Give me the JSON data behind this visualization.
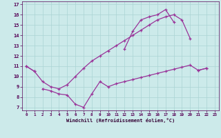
{
  "xlabel": "Windchill (Refroidissement éolien,°C)",
  "bg_color": "#cceaea",
  "line_color": "#993399",
  "grid_color": "#aad4d4",
  "xlim": [
    -0.5,
    23.5
  ],
  "ylim": [
    6.7,
    17.3
  ],
  "xticks": [
    0,
    1,
    2,
    3,
    4,
    5,
    6,
    7,
    8,
    9,
    10,
    11,
    12,
    13,
    14,
    15,
    16,
    17,
    18,
    19,
    20,
    21,
    22,
    23
  ],
  "yticks": [
    7,
    8,
    9,
    10,
    11,
    12,
    13,
    14,
    15,
    16,
    17
  ],
  "series": [
    {
      "segments": [
        {
          "x": [
            0,
            1
          ],
          "y": [
            11.0,
            10.5
          ]
        },
        {
          "x": [
            12,
            13,
            14,
            15,
            16,
            17,
            18
          ],
          "y": [
            12.7,
            14.4,
            15.5,
            15.8,
            16.0,
            16.5,
            15.3
          ]
        },
        {
          "x": [
            21,
            22
          ],
          "y": [
            10.6,
            10.8
          ]
        }
      ]
    },
    {
      "segments": [
        {
          "x": [
            0,
            1,
            2,
            3,
            4,
            5,
            6,
            7,
            8,
            9,
            10,
            11,
            12,
            13,
            14,
            15,
            16,
            17,
            18,
            19,
            20
          ],
          "y": [
            11.0,
            10.5,
            9.5,
            9.0,
            8.8,
            9.2,
            10.0,
            10.8,
            11.5,
            12.0,
            12.5,
            13.0,
            13.5,
            14.0,
            14.5,
            15.0,
            15.5,
            15.8,
            16.0,
            15.5,
            13.7
          ]
        }
      ]
    },
    {
      "segments": [
        {
          "x": [
            2,
            3,
            4,
            5,
            6,
            7,
            8,
            9,
            10,
            11,
            12,
            13,
            14,
            15,
            16,
            17,
            18,
            19,
            20,
            21,
            22
          ],
          "y": [
            8.8,
            8.6,
            8.3,
            8.2,
            7.3,
            7.0,
            8.3,
            9.5,
            9.0,
            9.3,
            9.5,
            9.7,
            9.9,
            10.1,
            10.3,
            10.5,
            10.7,
            10.9,
            11.1,
            10.6,
            10.8
          ]
        }
      ]
    }
  ]
}
